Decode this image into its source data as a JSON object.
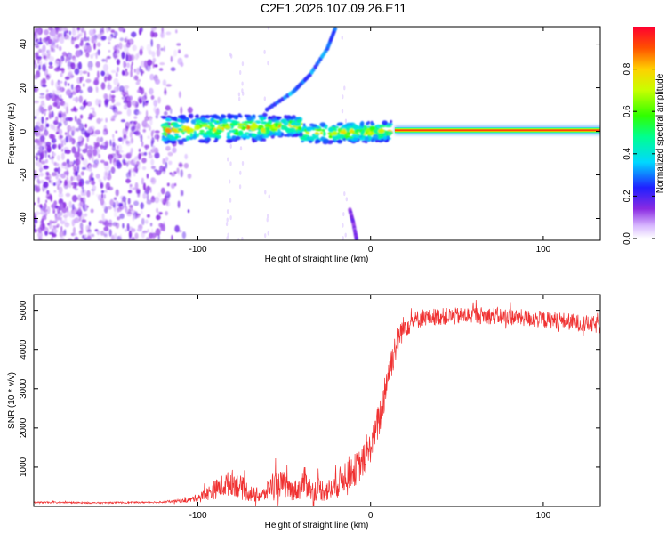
{
  "title": "C2E1.2026.107.09.26.E11",
  "chart_data": [
    {
      "type": "heatmap",
      "xlabel": "Height of straight line (km)",
      "ylabel": "Frequency (Hz)",
      "xlim": [
        -195,
        133
      ],
      "ylim": [
        -50,
        48
      ],
      "xticks": [
        -100,
        0,
        100
      ],
      "yticks": [
        -40,
        -20,
        0,
        20,
        40
      ],
      "colorbar": {
        "label": "Normalized spectral amplitude",
        "range": [
          0,
          1
        ],
        "ticks": [
          0.0,
          0.2,
          0.4,
          0.6,
          0.8
        ],
        "tick_labels": [
          "0.0",
          "0.2",
          "0.4",
          "0.6",
          "0.8"
        ]
      },
      "features": [
        {
          "name": "noise-region",
          "x_range": [
            -195,
            -105
          ],
          "y_range": [
            -50,
            48
          ],
          "amplitude": 0.2
        },
        {
          "name": "carrier-line",
          "x_range": [
            14,
            133
          ],
          "y": 0.5,
          "amplitude": 0.92
        },
        {
          "name": "transition-band",
          "x_range": [
            -120,
            12
          ],
          "y": [
            -2,
            4
          ],
          "amplitude": 0.45
        },
        {
          "name": "upper-branch",
          "points": [
            [
              -60,
              10
            ],
            [
              -45,
              18
            ],
            [
              -35,
              26
            ],
            [
              -25,
              38
            ],
            [
              -20,
              48
            ]
          ],
          "amplitude": 0.3
        },
        {
          "name": "lower-branch",
          "points": [
            [
              -12,
              -36
            ],
            [
              -10,
              -42
            ],
            [
              -8,
              -50
            ]
          ],
          "amplitude": 0.15
        }
      ]
    },
    {
      "type": "line",
      "xlabel": "Height of straight line (km)",
      "ylabel": "SNR (10 * v/v)",
      "xlim": [
        -195,
        133
      ],
      "ylim": [
        0,
        5400
      ],
      "xticks": [
        -100,
        0,
        100
      ],
      "yticks": [
        1000,
        2000,
        3000,
        4000,
        5000
      ],
      "color": "#f03232",
      "series": [
        {
          "name": "SNR",
          "x": [
            -195,
            -180,
            -160,
            -140,
            -120,
            -105,
            -98,
            -92,
            -86,
            -80,
            -74,
            -68,
            -62,
            -56,
            -50,
            -46,
            -42,
            -38,
            -34,
            -30,
            -26,
            -22,
            -18,
            -14,
            -10,
            -6,
            -2,
            2,
            6,
            8,
            10,
            12,
            14,
            16,
            18,
            20,
            24,
            30,
            40,
            50,
            60,
            70,
            80,
            90,
            100,
            110,
            120,
            133
          ],
          "y": [
            100,
            100,
            90,
            100,
            110,
            160,
            260,
            380,
            520,
            620,
            450,
            300,
            280,
            600,
            560,
            400,
            420,
            650,
            380,
            460,
            390,
            450,
            620,
            850,
            900,
            1050,
            1300,
            1750,
            2400,
            2900,
            3350,
            3700,
            4000,
            4280,
            4480,
            4600,
            4700,
            4820,
            4840,
            4850,
            4880,
            4860,
            4840,
            4800,
            4760,
            4740,
            4680,
            4620
          ],
          "noise": [
            20,
            20,
            20,
            20,
            20,
            60,
            120,
            220,
            300,
            330,
            300,
            200,
            190,
            340,
            330,
            270,
            280,
            380,
            270,
            300,
            290,
            300,
            380,
            420,
            420,
            420,
            400,
            420,
            520,
            520,
            480,
            450,
            420,
            380,
            330,
            300,
            260,
            230,
            220,
            220,
            220,
            220,
            220,
            220,
            220,
            220,
            220,
            220
          ]
        }
      ]
    }
  ]
}
